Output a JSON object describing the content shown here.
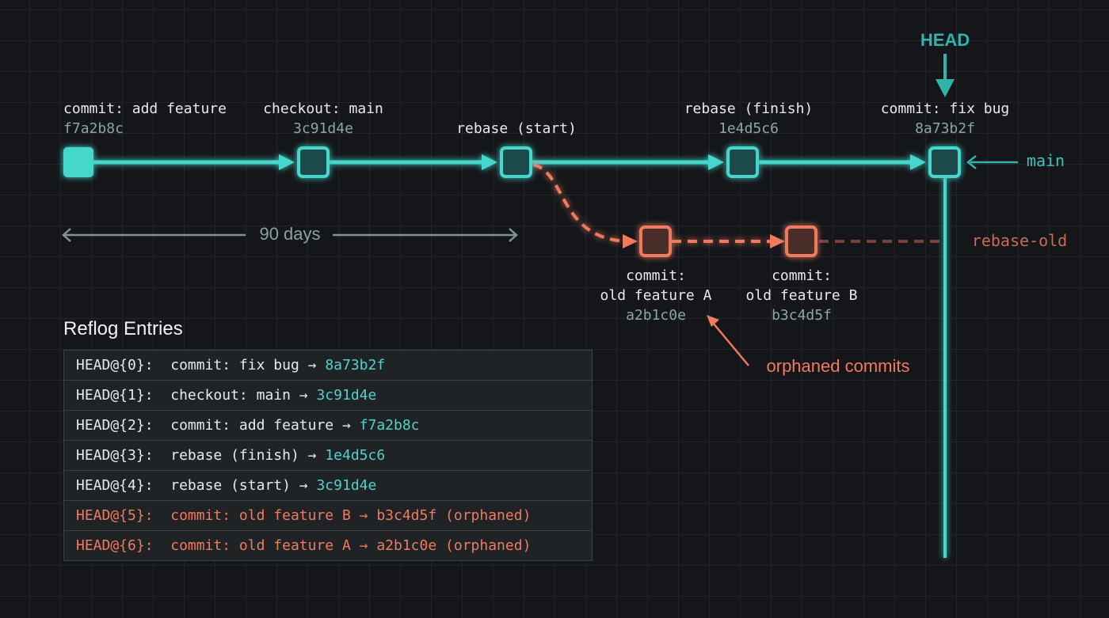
{
  "colors": {
    "main": "#45d6cc",
    "orphaned": "#f07a5e",
    "background": "#141619"
  },
  "head_label": "HEAD",
  "branch_main": "main",
  "branch_rebase_old": "rebase-old",
  "duration": "90 days",
  "orphaned_note": "orphaned commits",
  "nodes": [
    {
      "label": "commit: add feature",
      "hash": "f7a2b8c"
    },
    {
      "label": "checkout: main",
      "hash": "3c91d4e"
    },
    {
      "label": "rebase (start)",
      "hash": ""
    },
    {
      "label": "rebase (finish)",
      "hash": "1e4d5c6"
    },
    {
      "label": "commit: fix bug",
      "hash": "8a73b2f"
    }
  ],
  "orphan_nodes": [
    {
      "label1": "commit:",
      "label2": "old feature A",
      "hash": "a2b1c0e"
    },
    {
      "label1": "commit:",
      "label2": "old feature B",
      "hash": "b3c4d5f"
    }
  ],
  "reflog": {
    "title": "Reflog Entries",
    "entries": [
      {
        "ref": "HEAD@{0}:",
        "action": "commit: fix bug →",
        "hash": "8a73b2f",
        "note": "",
        "orphaned": false
      },
      {
        "ref": "HEAD@{1}:",
        "action": "checkout: main →",
        "hash": "3c91d4e",
        "note": "",
        "orphaned": false
      },
      {
        "ref": "HEAD@{2}:",
        "action": "commit: add feature →",
        "hash": "f7a2b8c",
        "note": "",
        "orphaned": false
      },
      {
        "ref": "HEAD@{3}:",
        "action": "rebase (finish) →",
        "hash": "1e4d5c6",
        "note": "",
        "orphaned": false
      },
      {
        "ref": "HEAD@{4}:",
        "action": "rebase (start) →",
        "hash": "3c91d4e",
        "note": "",
        "orphaned": false
      },
      {
        "ref": "HEAD@{5}:",
        "action": "commit: old feature B →",
        "hash": "b3c4d5f",
        "note": "(orphaned)",
        "orphaned": true
      },
      {
        "ref": "HEAD@{6}:",
        "action": "commit: old feature A →",
        "hash": "a2b1c0e",
        "note": "(orphaned)",
        "orphaned": true
      }
    ]
  }
}
